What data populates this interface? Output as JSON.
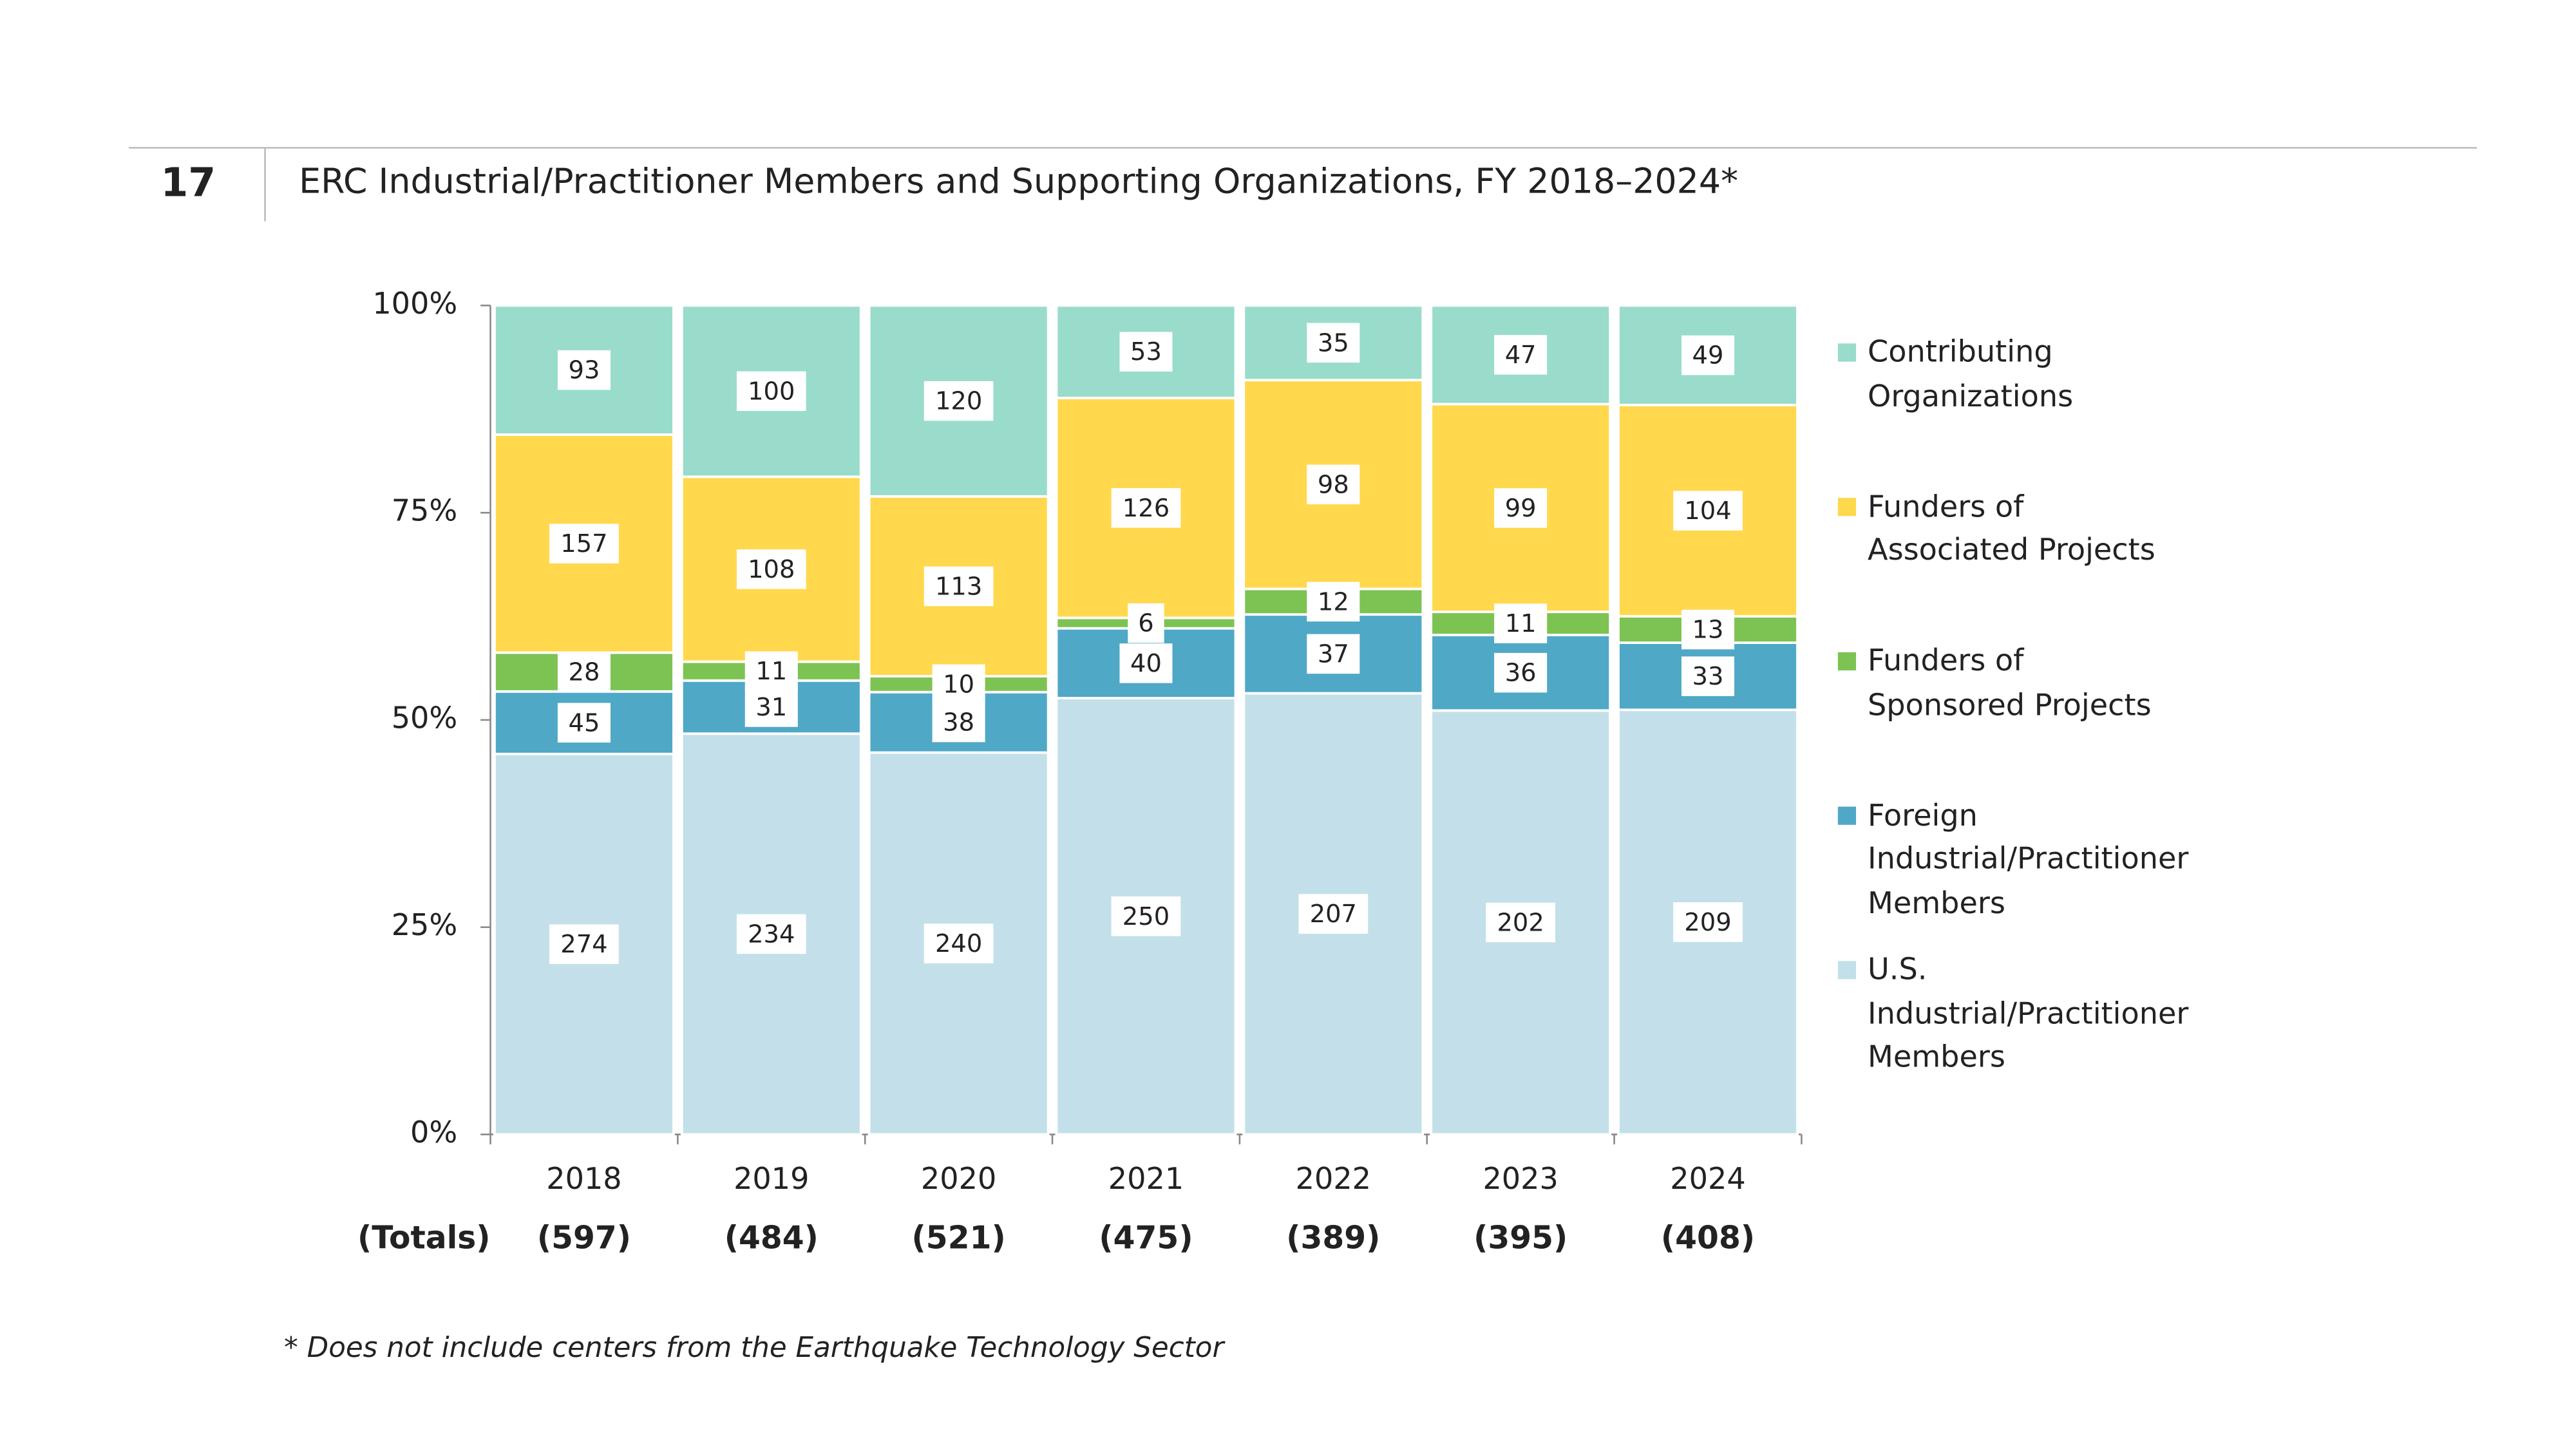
{
  "chart_data": {
    "type": "stacked_percent_bar",
    "figure_number": "17",
    "title": "ERC Industrial/Practitioner Members and Supporting Organizations, FY 2018–2024*",
    "footnote": "* Does not include centers from the Earthquake Technology Sector",
    "categories": [
      "2018",
      "2019",
      "2020",
      "2021",
      "2022",
      "2023",
      "2024"
    ],
    "totals_label": "(Totals)",
    "totals": [
      "(597)",
      "(484)",
      "(521)",
      "(475)",
      "(389)",
      "(395)",
      "(408)"
    ],
    "ylim": [
      0,
      100
    ],
    "yticks": [
      {
        "value": 0,
        "label": "0%"
      },
      {
        "value": 25,
        "label": "25%"
      },
      {
        "value": 50,
        "label": "50%"
      },
      {
        "value": 75,
        "label": "75%"
      },
      {
        "value": 100,
        "label": "100%"
      }
    ],
    "series": [
      {
        "name": "U.S.\nIndustrial/Practitioner\nMembers",
        "color": "#c3e0ea",
        "values": [
          274,
          234,
          240,
          250,
          207,
          202,
          209
        ]
      },
      {
        "name": "Foreign\nIndustrial/Practitioner\nMembers",
        "color": "#4fa8c6",
        "values": [
          45,
          31,
          38,
          40,
          37,
          36,
          33
        ]
      },
      {
        "name": "Funders of\nSponsored Projects",
        "color": "#7dc353",
        "values": [
          28,
          11,
          10,
          6,
          12,
          11,
          13
        ]
      },
      {
        "name": "Funders of\nAssociated Projects",
        "color": "#ffd84d",
        "values": [
          157,
          108,
          113,
          126,
          98,
          99,
          104
        ]
      },
      {
        "name": "Contributing\nOrganizations",
        "color": "#99dccb",
        "values": [
          93,
          100,
          120,
          53,
          35,
          47,
          49
        ]
      }
    ]
  }
}
